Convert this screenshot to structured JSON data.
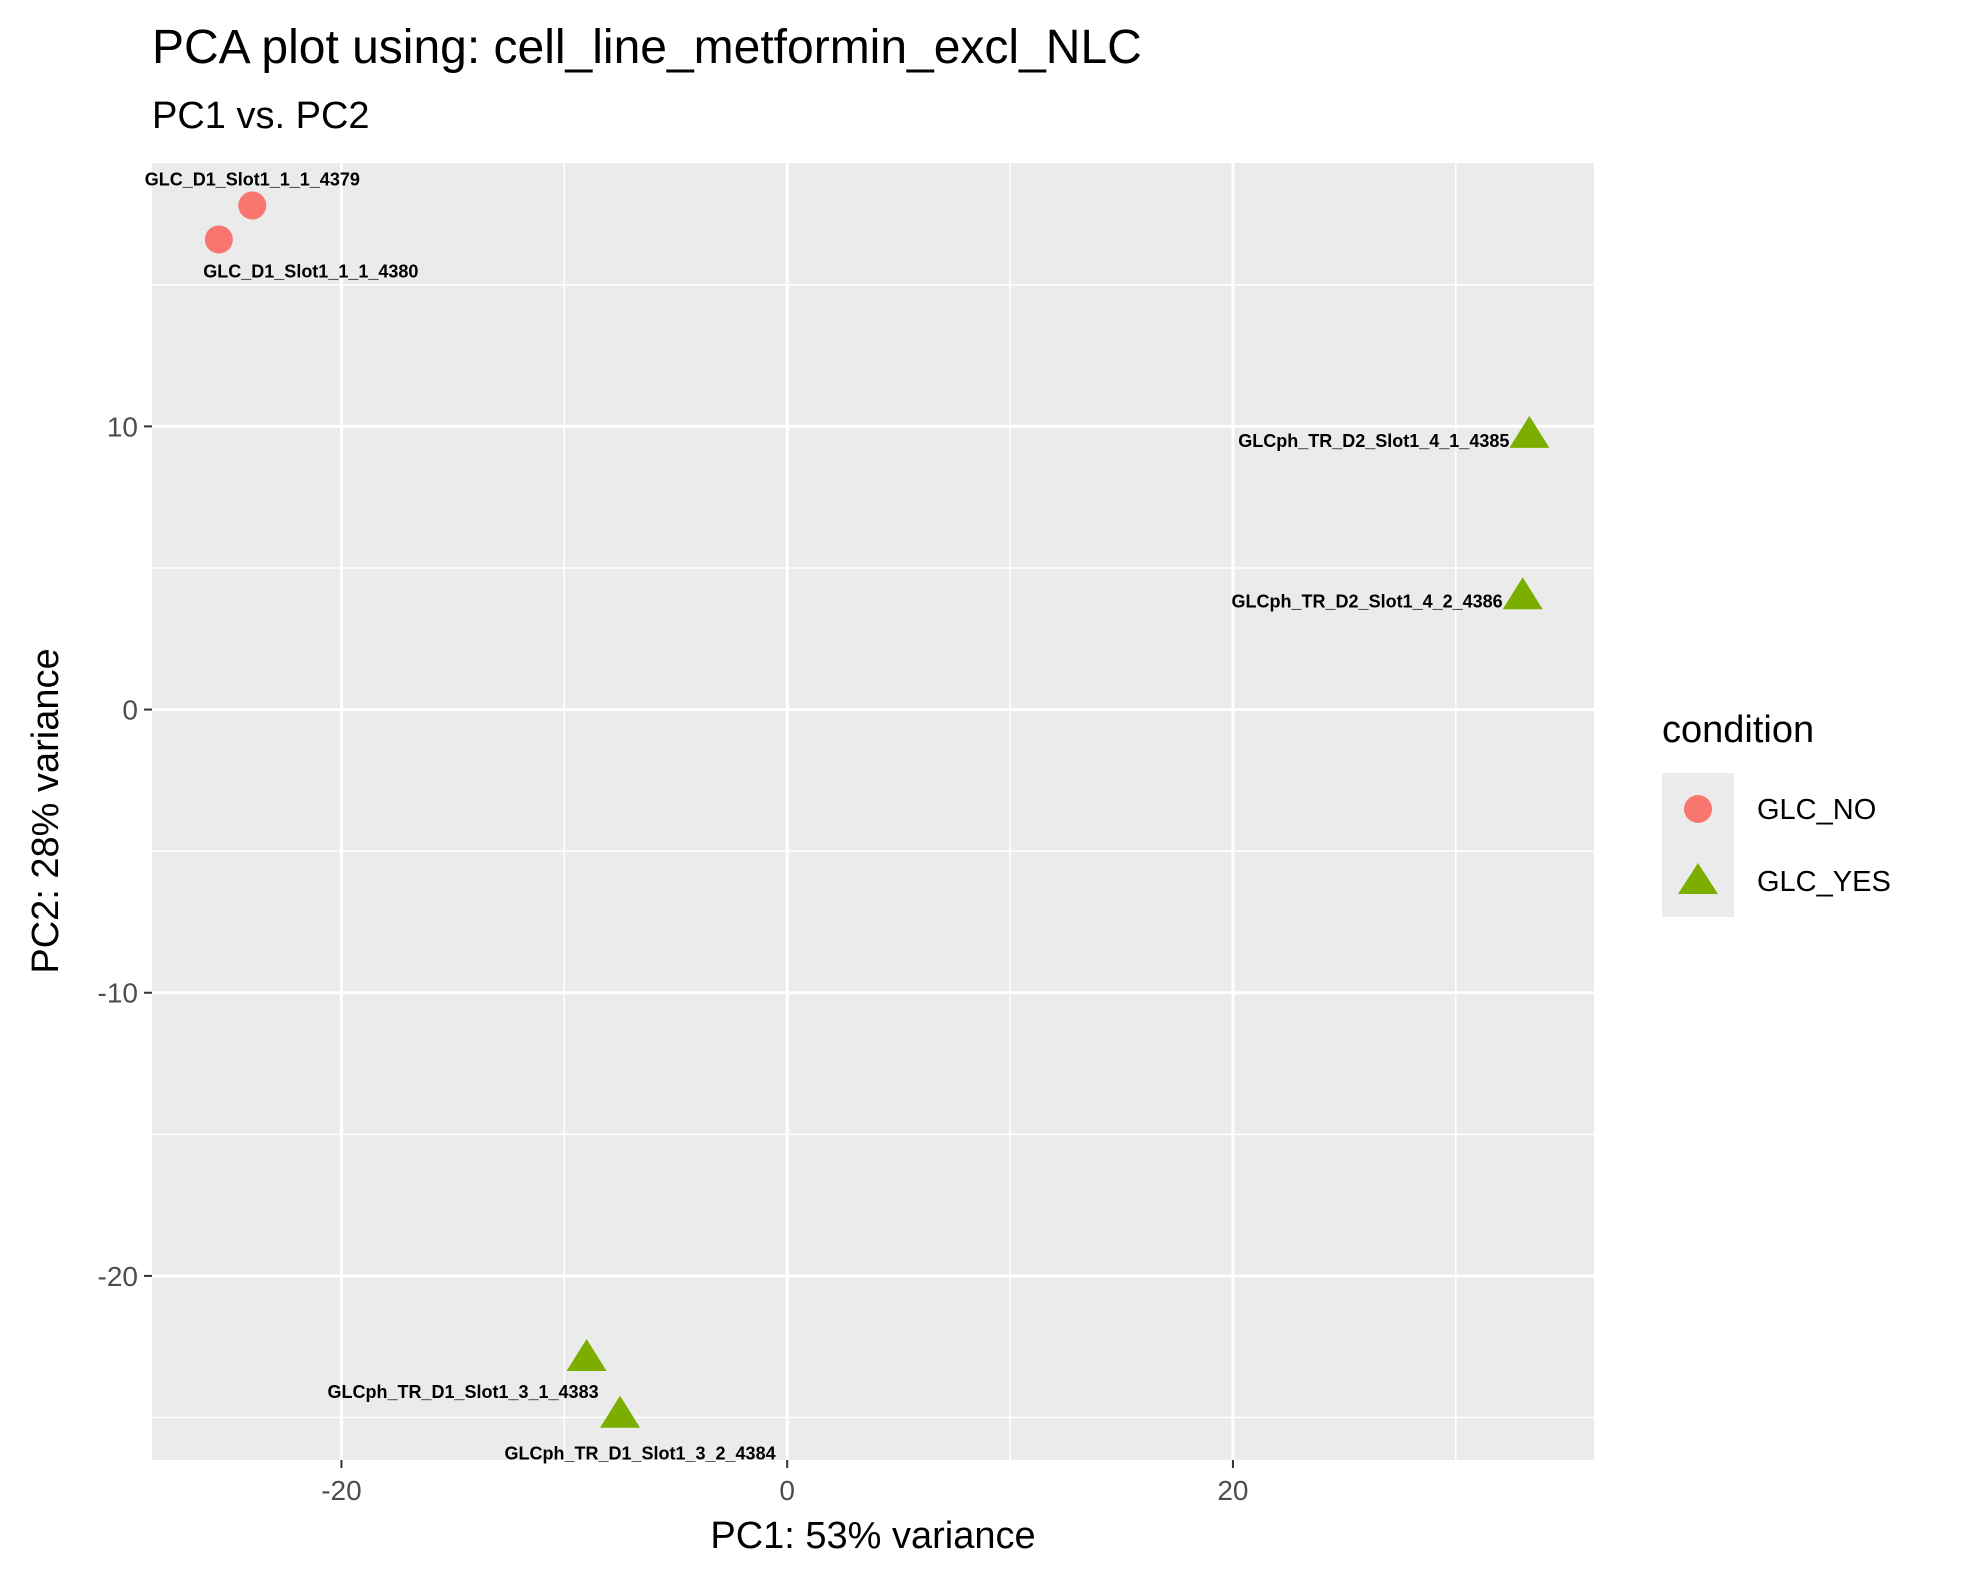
{
  "chart_data": {
    "type": "scatter",
    "title": "PCA plot using: cell_line_metformin_excl_NLC",
    "subtitle": "PC1 vs. PC2",
    "xlabel": "PC1: 53% variance",
    "ylabel": "PC2: 28% variance",
    "xlim": [
      -28.5,
      36.2
    ],
    "ylim": [
      -26.5,
      19.3
    ],
    "x_ticks": [
      -20,
      0,
      20
    ],
    "x_tick_labels": [
      "-20",
      "0",
      "20"
    ],
    "y_ticks": [
      -20,
      -10,
      0,
      10
    ],
    "y_tick_labels": [
      "-20",
      "-10",
      "0",
      "10"
    ],
    "grid": true,
    "legend": {
      "title": "condition",
      "position": "right",
      "entries": [
        {
          "label": "GLC_NO",
          "shape": "circle",
          "color": "#F8766D"
        },
        {
          "label": "GLC_YES",
          "shape": "triangle",
          "color": "#7CAE00"
        }
      ]
    },
    "series": [
      {
        "name": "GLC_NO",
        "color": "#F8766D",
        "shape": "circle",
        "points": [
          {
            "label": "GLC_D1_Slot1_1_1_4379",
            "x": -24.0,
            "y": 17.8
          },
          {
            "label": "GLC_D1_Slot1_1_1_4380",
            "x": -25.5,
            "y": 16.6
          }
        ]
      },
      {
        "name": "GLC_YES",
        "color": "#7CAE00",
        "shape": "triangle",
        "points": [
          {
            "label": "GLCph_TR_D2_Slot1_4_1_4385",
            "x": 33.3,
            "y": 9.7
          },
          {
            "label": "GLCph_TR_D2_Slot1_4_2_4386",
            "x": 33.0,
            "y": 4.0
          },
          {
            "label": "GLCph_TR_D1_Slot1_3_1_4383",
            "x": -9.0,
            "y": -22.9
          },
          {
            "label": "GLCph_TR_D1_Slot1_3_2_4384",
            "x": -7.5,
            "y": -24.9
          }
        ]
      }
    ]
  }
}
